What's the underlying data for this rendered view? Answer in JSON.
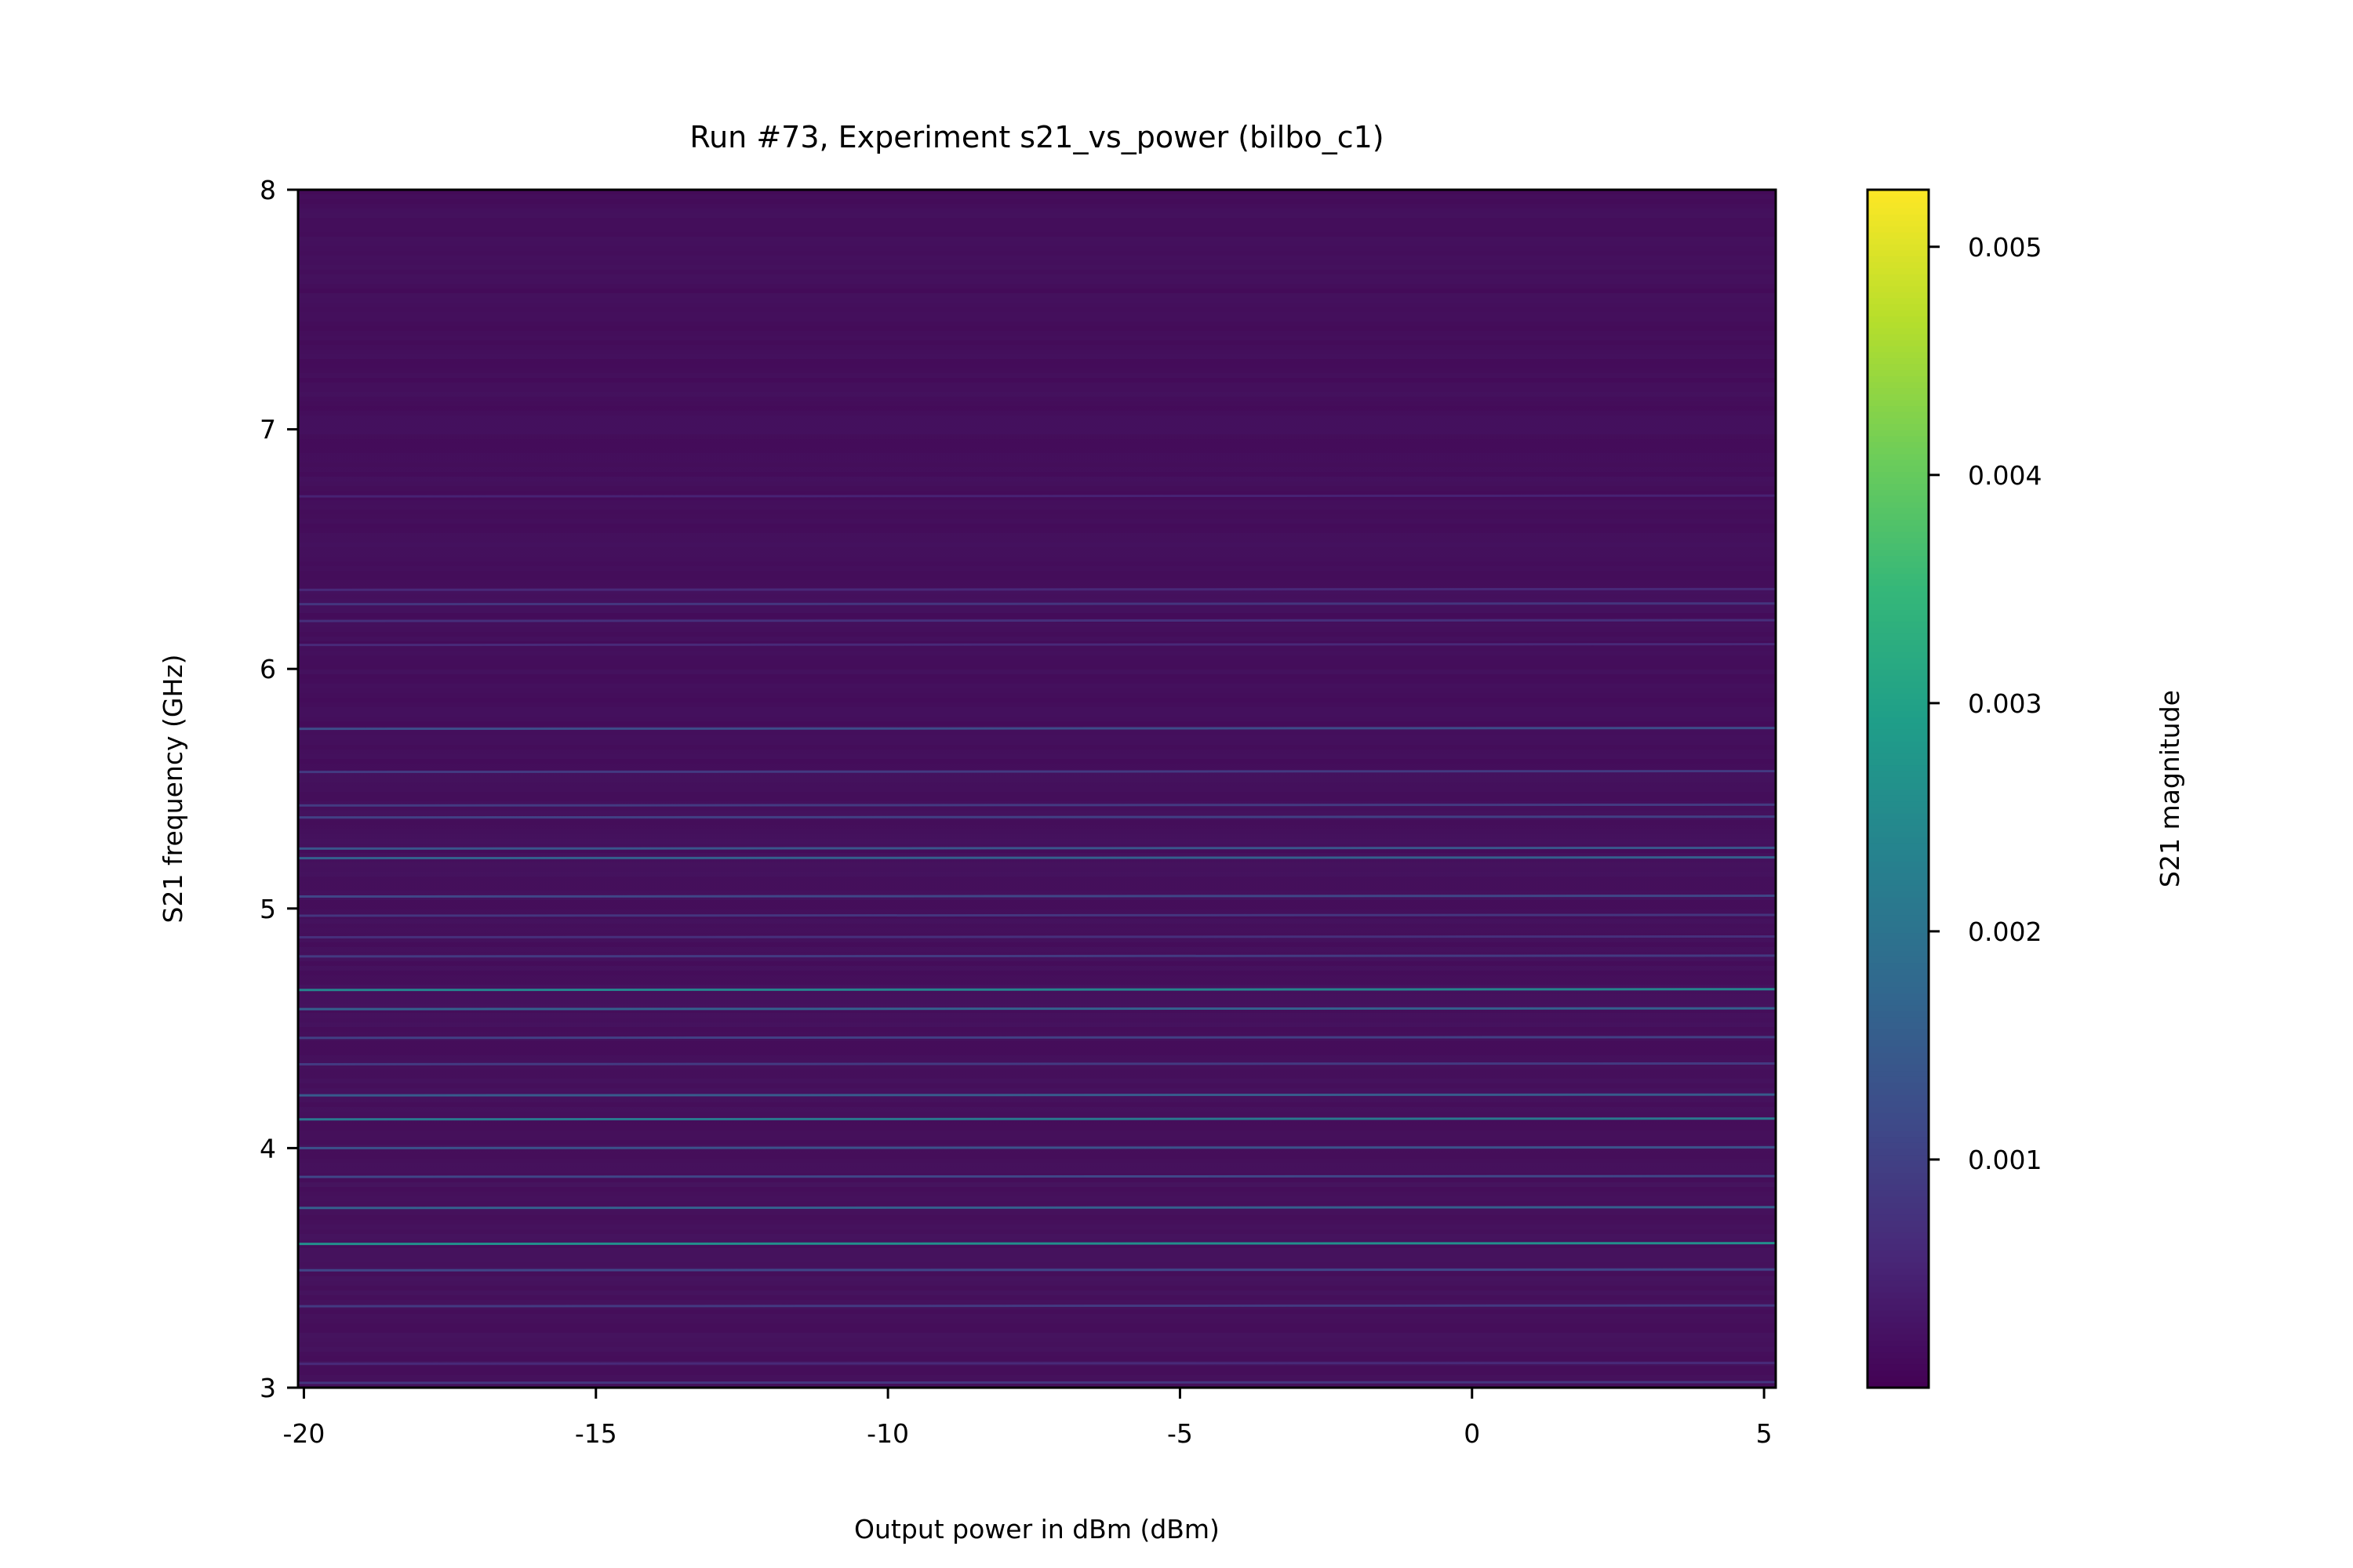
{
  "chart_data": {
    "type": "heatmap",
    "title": "Run #73, Experiment s21_vs_power (bilbo_c1)",
    "xlabel": "Output power in dBm (dBm)",
    "ylabel": "S21 frequency (GHz)",
    "xlim": [
      -20.1,
      5.2
    ],
    "ylim": [
      3,
      8
    ],
    "x_ticks": [
      -20,
      -15,
      -10,
      -5,
      0,
      5
    ],
    "x_tick_labels": [
      "-20",
      "-15",
      "-10",
      "-5",
      "0",
      "5"
    ],
    "y_ticks": [
      3,
      4,
      5,
      6,
      7,
      8
    ],
    "y_tick_labels": [
      "3",
      "4",
      "5",
      "6",
      "7",
      "8"
    ],
    "colorbar": {
      "label": "S21 magnitude",
      "colormap": "viridis",
      "range": [
        0.0,
        0.00525
      ],
      "ticks": [
        0.001,
        0.002,
        0.003,
        0.004,
        0.005
      ],
      "tick_labels": [
        "0.001",
        "0.002",
        "0.003",
        "0.004",
        "0.005"
      ]
    },
    "background_magnitude": 0.0002,
    "resonances": [
      {
        "frequency_ghz": 3.02,
        "magnitude": 0.0008
      },
      {
        "frequency_ghz": 3.1,
        "magnitude": 0.0006
      },
      {
        "frequency_ghz": 3.34,
        "magnitude": 0.0009
      },
      {
        "frequency_ghz": 3.49,
        "magnitude": 0.0011
      },
      {
        "frequency_ghz": 3.6,
        "magnitude": 0.0026
      },
      {
        "frequency_ghz": 3.75,
        "magnitude": 0.0016
      },
      {
        "frequency_ghz": 3.88,
        "magnitude": 0.0011
      },
      {
        "frequency_ghz": 4.0,
        "magnitude": 0.0013
      },
      {
        "frequency_ghz": 4.12,
        "magnitude": 0.0021
      },
      {
        "frequency_ghz": 4.22,
        "magnitude": 0.0015
      },
      {
        "frequency_ghz": 4.35,
        "magnitude": 0.0009
      },
      {
        "frequency_ghz": 4.46,
        "magnitude": 0.001
      },
      {
        "frequency_ghz": 4.58,
        "magnitude": 0.0016
      },
      {
        "frequency_ghz": 4.66,
        "magnitude": 0.0024
      },
      {
        "frequency_ghz": 4.8,
        "magnitude": 0.0009
      },
      {
        "frequency_ghz": 4.88,
        "magnitude": 0.0007
      },
      {
        "frequency_ghz": 4.97,
        "magnitude": 0.0008
      },
      {
        "frequency_ghz": 5.05,
        "magnitude": 0.0011
      },
      {
        "frequency_ghz": 5.21,
        "magnitude": 0.0016
      },
      {
        "frequency_ghz": 5.25,
        "magnitude": 0.0014
      },
      {
        "frequency_ghz": 5.38,
        "magnitude": 0.001
      },
      {
        "frequency_ghz": 5.43,
        "magnitude": 0.0009
      },
      {
        "frequency_ghz": 5.57,
        "magnitude": 0.0009
      },
      {
        "frequency_ghz": 5.75,
        "magnitude": 0.0012
      },
      {
        "frequency_ghz": 6.1,
        "magnitude": 0.0006
      },
      {
        "frequency_ghz": 6.2,
        "magnitude": 0.0007
      },
      {
        "frequency_ghz": 6.27,
        "magnitude": 0.0008
      },
      {
        "frequency_ghz": 6.33,
        "magnitude": 0.0006
      },
      {
        "frequency_ghz": 6.72,
        "magnitude": 0.0005
      }
    ]
  }
}
